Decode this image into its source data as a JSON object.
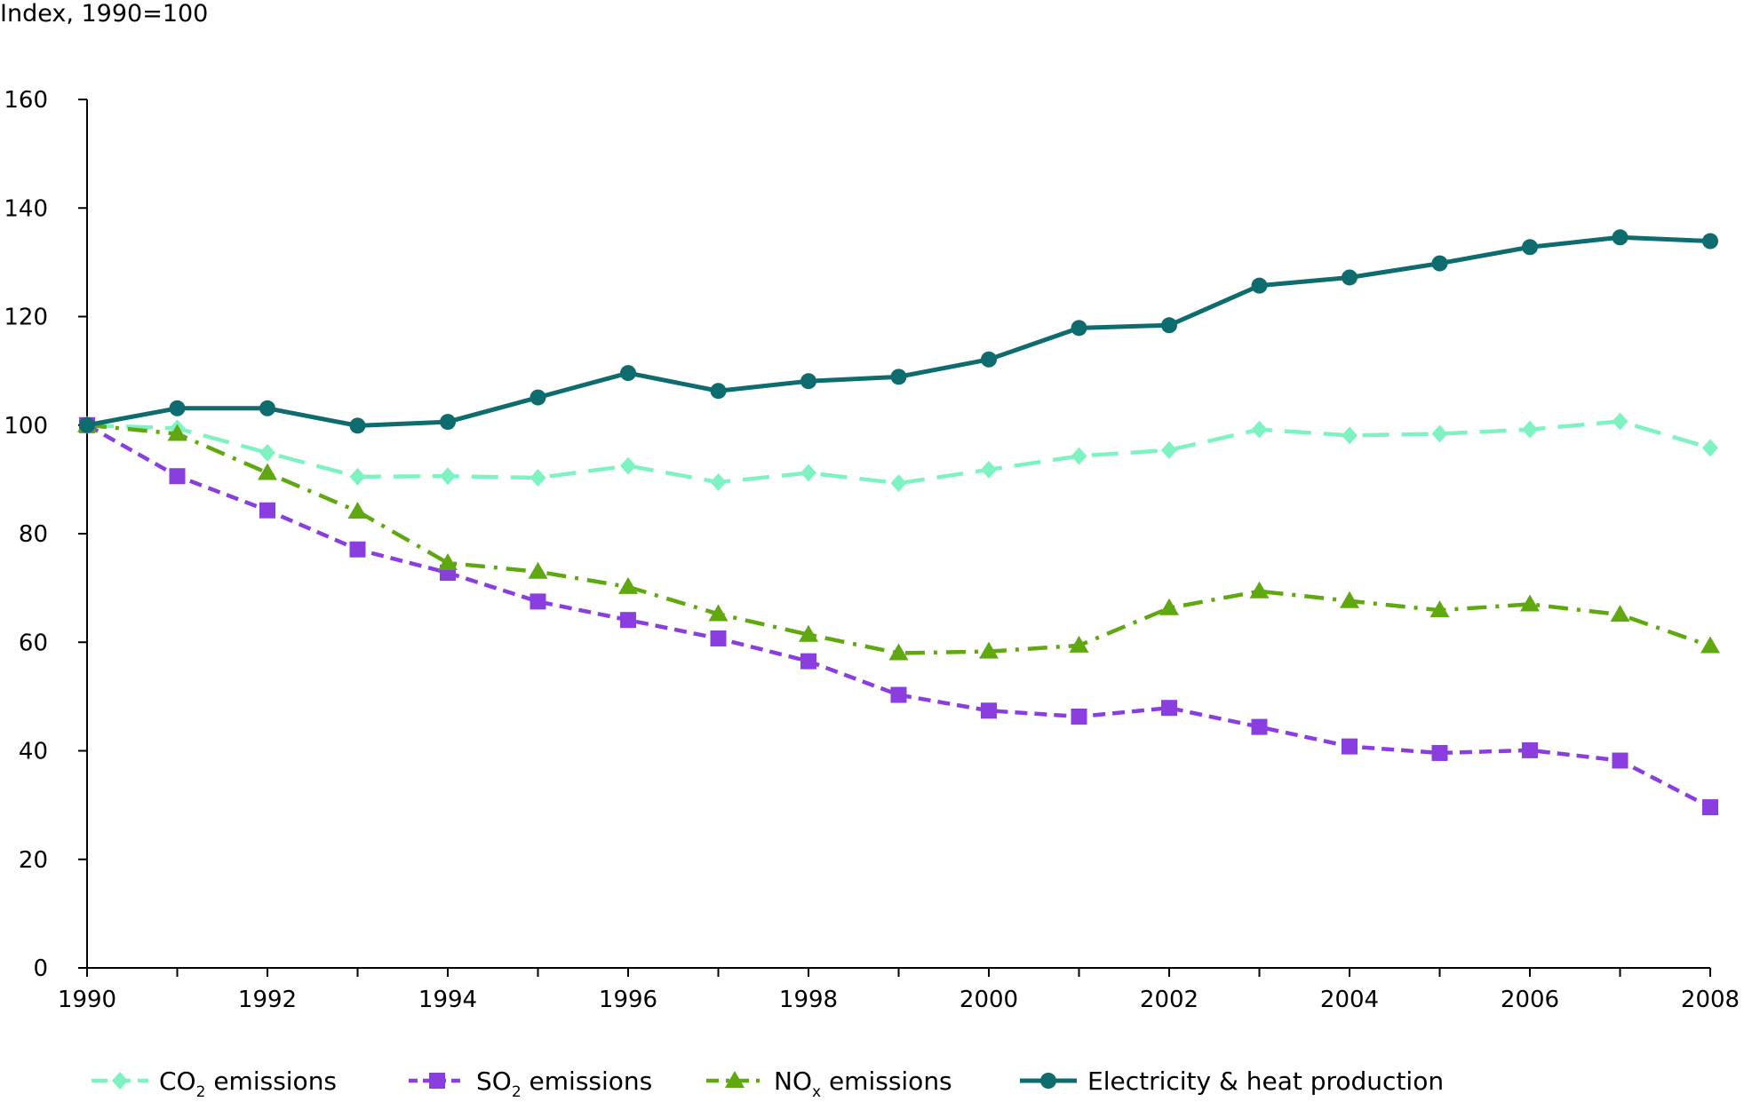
{
  "chart_data": {
    "type": "line",
    "ylabel": "Index, 1990=100",
    "ylim": [
      0,
      160
    ],
    "yticks": [
      0,
      20,
      40,
      60,
      80,
      100,
      120,
      140,
      160
    ],
    "x": [
      1990,
      1991,
      1992,
      1993,
      1994,
      1995,
      1996,
      1997,
      1998,
      1999,
      2000,
      2001,
      2002,
      2003,
      2004,
      2005,
      2006,
      2007,
      2008
    ],
    "xlim": [
      1990,
      2008
    ],
    "xticks": [
      1990,
      1992,
      1994,
      1996,
      1998,
      2000,
      2002,
      2004,
      2006,
      2008
    ],
    "grid": false,
    "legend_position": "bottom",
    "series": [
      {
        "name_main": "CO",
        "name_sub": "2",
        "name_rest": " emissions",
        "color": "#7ff2c2",
        "marker": "diamond",
        "dash": "dashed",
        "values": [
          100,
          99.4,
          94.9,
          90.5,
          90.6,
          90.3,
          92.5,
          89.5,
          91.2,
          89.3,
          91.8,
          94.3,
          95.4,
          99.2,
          98.1,
          98.4,
          99.2,
          100.7,
          95.8
        ]
      },
      {
        "name_main": "SO",
        "name_sub": "2",
        "name_rest": " emissions",
        "color": "#8a3ee0",
        "marker": "square",
        "dash": "short-dash",
        "values": [
          100,
          90.6,
          84.3,
          77.1,
          72.8,
          67.5,
          64.1,
          60.7,
          56.5,
          50.3,
          47.4,
          46.3,
          47.9,
          44.4,
          40.8,
          39.6,
          40.1,
          38.2,
          29.6
        ]
      },
      {
        "name_main": "NO",
        "name_sub": "x",
        "name_rest": " emissions",
        "color": "#5fa80f",
        "marker": "triangle",
        "dash": "dash-dot",
        "values": [
          100,
          98.4,
          91.2,
          84.1,
          74.6,
          73,
          70.2,
          65.2,
          61.4,
          58,
          58.3,
          59.4,
          66.3,
          69.4,
          67.6,
          65.9,
          67,
          65.1,
          59.3
        ]
      },
      {
        "name_main": "Electricity & heat production",
        "name_sub": "",
        "name_rest": "",
        "color": "#0e6b6e",
        "marker": "circle",
        "dash": "solid",
        "values": [
          100,
          103.1,
          103.1,
          99.9,
          100.6,
          105.1,
          109.6,
          106.3,
          108.1,
          108.9,
          112.1,
          117.9,
          118.4,
          125.7,
          127.2,
          129.8,
          132.8,
          134.6,
          133.9
        ]
      }
    ]
  }
}
